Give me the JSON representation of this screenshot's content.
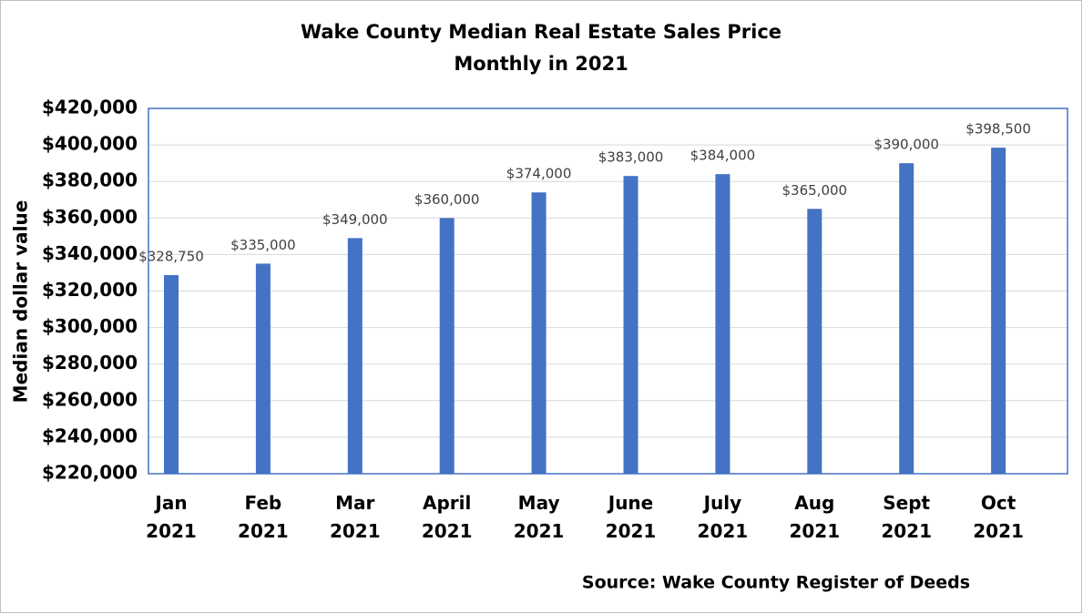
{
  "chart_data": {
    "type": "bar",
    "title": "Wake County Median Real Estate Sales Price",
    "subtitle": "Monthly in 2021",
    "y_label": "Median dollar value",
    "source": "Source: Wake County Register of Deeds",
    "categories": [
      "Jan 2021",
      "Feb 2021",
      "Mar 2021",
      "April 2021",
      "May 2021",
      "June 2021",
      "July 2021",
      "Aug 2021",
      "Sept 2021",
      "Oct 2021"
    ],
    "values": [
      328750,
      335000,
      349000,
      360000,
      374000,
      383000,
      384000,
      365000,
      390000,
      398500
    ],
    "value_labels": [
      "$328,750",
      "$335,000",
      "$349,000",
      "$360,000",
      "$374,000",
      "$383,000",
      "$384,000",
      "$365,000",
      "$390,000",
      "$398,500"
    ],
    "color": "#4472c4",
    "ylim": [
      220000,
      420000
    ],
    "yticks": [
      {
        "value": 220000,
        "label": "$220,000"
      },
      {
        "value": 240000,
        "label": "$240,000"
      },
      {
        "value": 260000,
        "label": "$260,000"
      },
      {
        "value": 280000,
        "label": "$280,000"
      },
      {
        "value": 300000,
        "label": "$300,000"
      },
      {
        "value": 320000,
        "label": "$320,000"
      },
      {
        "value": 340000,
        "label": "$340,000"
      },
      {
        "value": 360000,
        "label": "$360,000"
      },
      {
        "value": 380000,
        "label": "$380,000"
      },
      {
        "value": 400000,
        "label": "$400,000"
      },
      {
        "value": 420000,
        "label": "$420,000"
      }
    ],
    "grid": true
  }
}
